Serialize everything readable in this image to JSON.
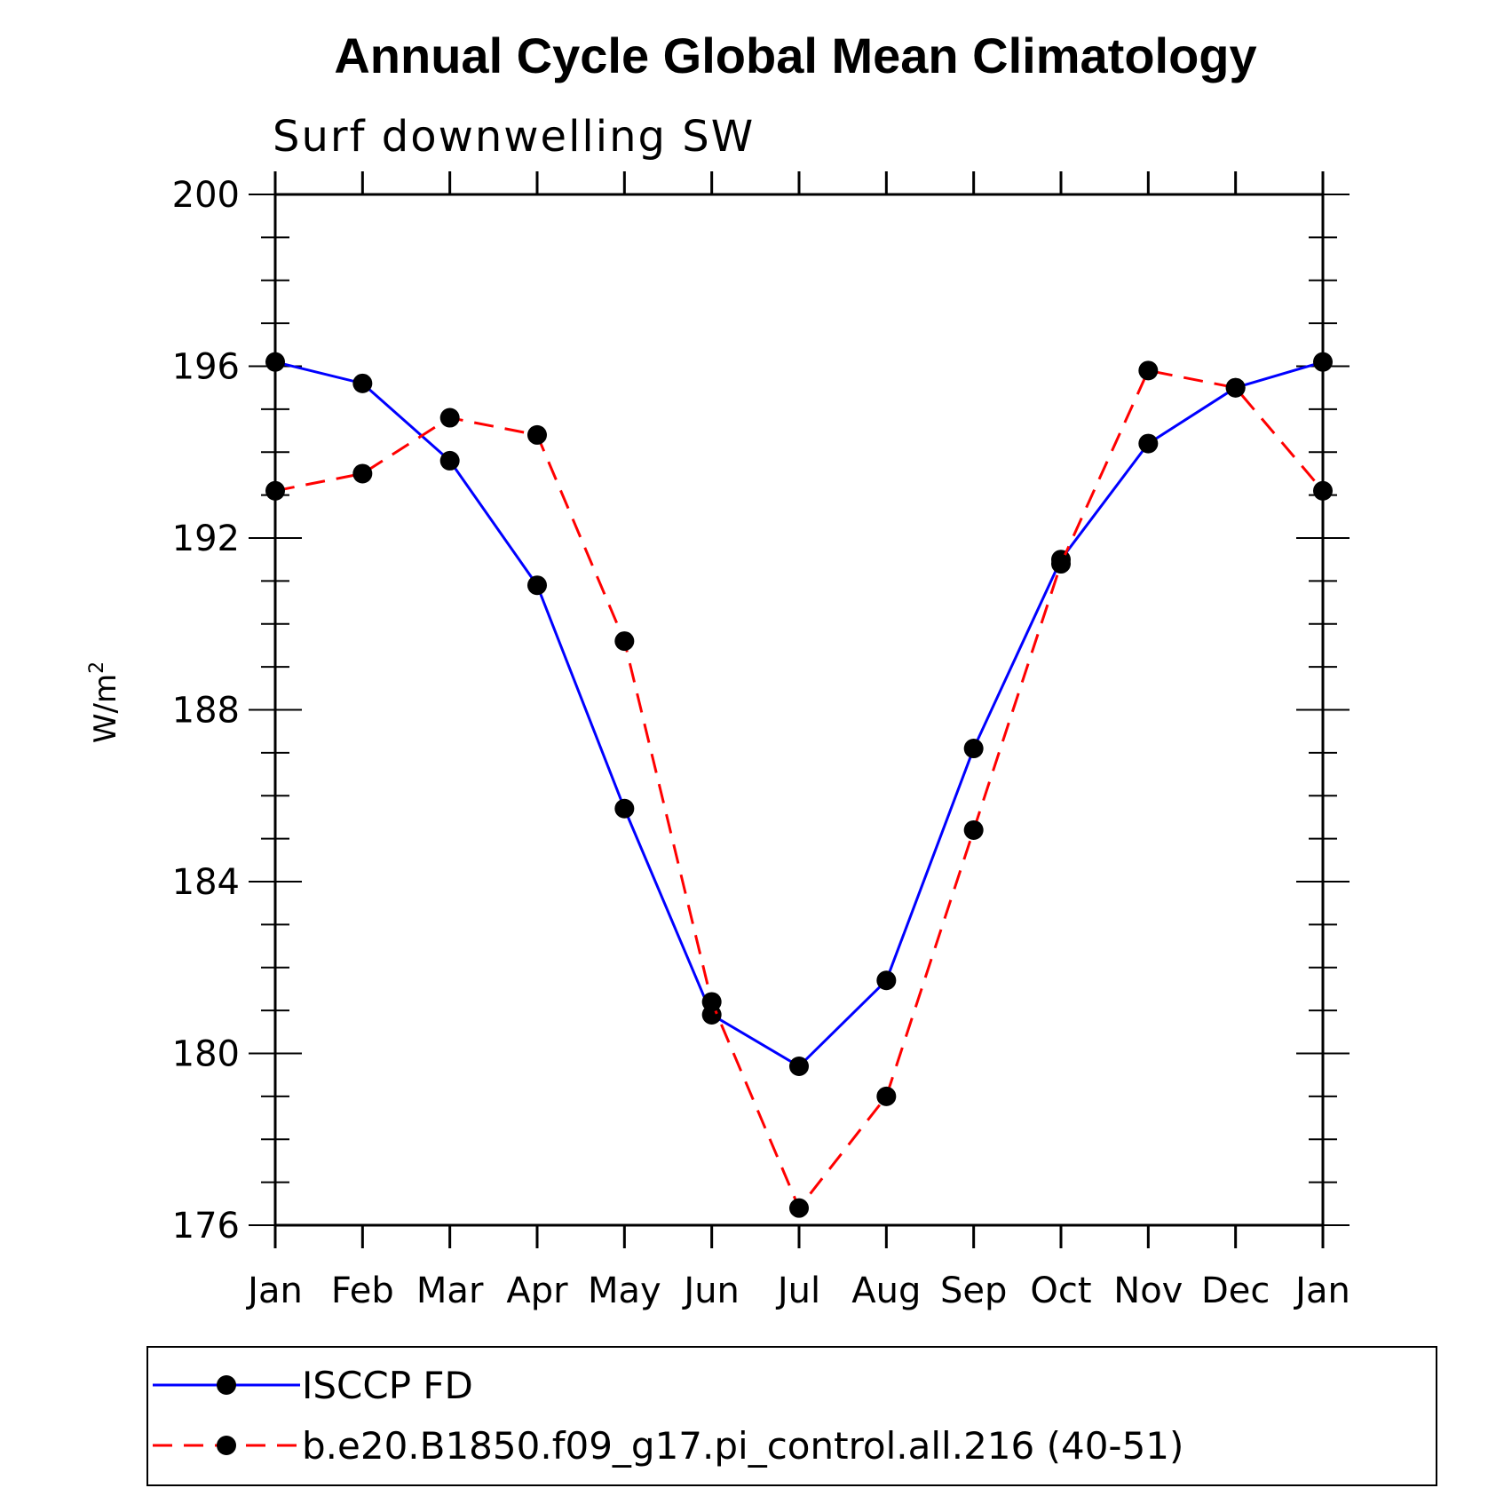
{
  "chart_data": {
    "type": "line",
    "title": "Annual Cycle Global Mean Climatology",
    "subtitle": "Surf downwelling SW",
    "ylabel": "W/m",
    "ylabel_sup": "2",
    "ylim": [
      176,
      200
    ],
    "yticks": [
      200,
      196,
      192,
      188,
      184,
      180,
      176
    ],
    "categories": [
      "Jan",
      "Feb",
      "Mar",
      "Apr",
      "May",
      "Jun",
      "Jul",
      "Aug",
      "Sep",
      "Oct",
      "Nov",
      "Dec",
      "Jan"
    ],
    "series": [
      {
        "name": "ISCCP FD",
        "color": "#0000ff",
        "dash": "solid",
        "values": [
          196.1,
          195.6,
          193.8,
          190.9,
          185.7,
          180.9,
          179.7,
          181.7,
          187.1,
          191.5,
          194.2,
          195.5,
          196.1
        ]
      },
      {
        "name": "b.e20.B1850.f09_g17.pi_control.all.216 (40-51)",
        "color": "#ff0000",
        "dash": "dashed",
        "values": [
          193.1,
          193.5,
          194.8,
          194.4,
          189.6,
          181.2,
          176.4,
          179.0,
          185.2,
          191.4,
          195.9,
          195.5,
          193.1
        ]
      }
    ],
    "legend_position": "bottom",
    "grid": false
  }
}
